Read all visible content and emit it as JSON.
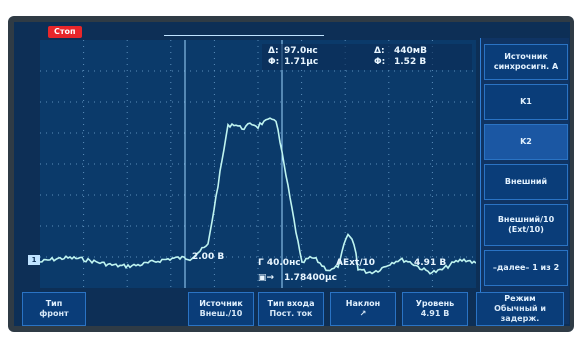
{
  "status": {
    "run_state": "Стоп"
  },
  "readout": {
    "row1_label_a": "Δ:",
    "row1_value_a": "97.0нс",
    "row1_label_b": "Δ:",
    "row1_value_b": "440мВ",
    "row2_label_a": "Φ:",
    "row2_value_a": "1.71μс",
    "row2_label_b": "Φ:",
    "row2_value_b": "1.52 В"
  },
  "scale": {
    "ch1_volts": "2.00 В",
    "timebase": "Γ 40.0нс",
    "trigger_src": "AExt/10",
    "trigger_level": "4.91 В",
    "delay": "1.78400μс"
  },
  "menu": {
    "title": "Источник синхросигн. A",
    "items": [
      "K1",
      "K2",
      "Внешний",
      "Внешний/10 (Ext/10)",
      "–далее– 1 из 2"
    ]
  },
  "softkeys": [
    {
      "line1": "Тип",
      "line2": "фронт"
    },
    {
      "line1": "Источник",
      "line2": "Внеш./10"
    },
    {
      "line1": "Тип входа",
      "line2": "Пост. ток"
    },
    {
      "line1": "Наклон",
      "line2": "↗"
    },
    {
      "line1": "Уровень",
      "line2": "4.91 В"
    },
    {
      "line1": "Режим",
      "line2": "Обычный и задерж."
    }
  ],
  "colors": {
    "trace": "#bff4f0",
    "grid": "#6fa3d0",
    "screen": "#0d2f56",
    "stop_badge": "#e8262a"
  }
}
